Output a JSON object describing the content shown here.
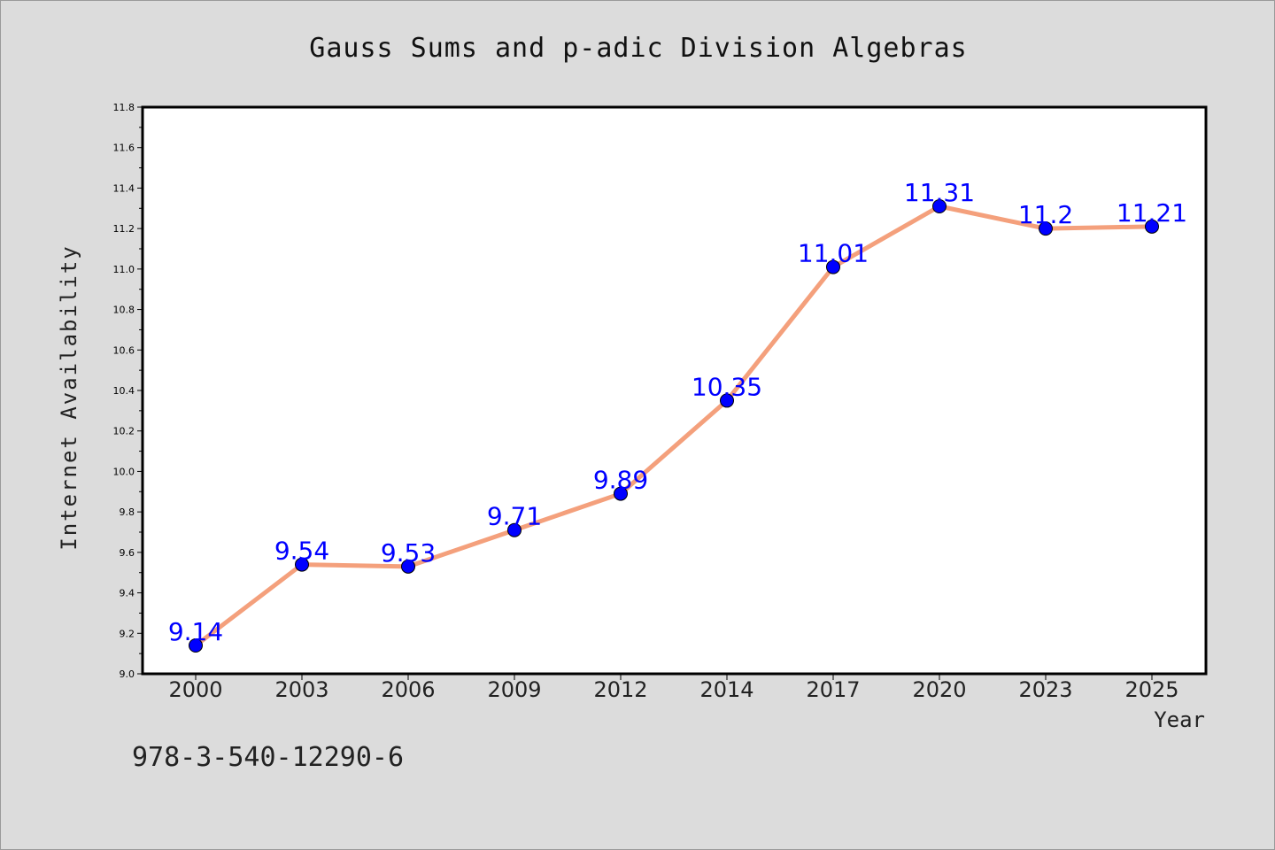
{
  "chart_data": {
    "type": "line",
    "title": "Gauss Sums and p-adic Division Algebras",
    "xlabel": "Year",
    "ylabel": "Internet Availability",
    "categories": [
      "2000",
      "2003",
      "2006",
      "2009",
      "2012",
      "2014",
      "2017",
      "2020",
      "2023",
      "2025"
    ],
    "series": [
      {
        "values": [
          9.14,
          9.54,
          9.53,
          9.71,
          9.89,
          10.35,
          11.01,
          11.31,
          11.2,
          11.21
        ],
        "data_labels": [
          "9.14",
          "9.54",
          "9.53",
          "9.71",
          "9.89",
          "10.35",
          "11.01",
          "11.31",
          "11.2",
          "11.21"
        ],
        "line_color": "#f4a07c",
        "marker_color": "#0000ff"
      }
    ],
    "ylim": [
      9.0,
      11.8
    ],
    "yticks": [
      "9.0",
      "9.2",
      "9.4",
      "9.6",
      "9.8",
      "10.0",
      "10.2",
      "10.4",
      "10.6",
      "10.8",
      "11.0",
      "11.2",
      "11.4",
      "11.6",
      "11.8"
    ],
    "grid": false,
    "legend": "none",
    "label_color": "#0000ff",
    "background_color": "#dcdcdc",
    "plot_background": "#ffffff"
  },
  "footer": {
    "isbn": "978-3-540-12290-6"
  }
}
